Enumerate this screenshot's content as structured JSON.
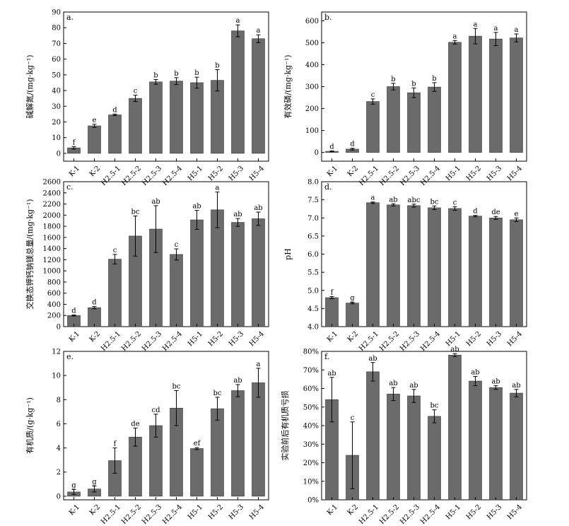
{
  "chart_data": [
    {
      "type": "bar",
      "panel_label": "a.",
      "ylabel": "碱解氮/(mg·kg⁻¹)",
      "categories": [
        "K-1",
        "K-2",
        "H2.5-1",
        "H2.5-2",
        "H2.5-3",
        "H2.5-4",
        "H5-1",
        "H5-2",
        "H5-3",
        "H5-4"
      ],
      "values": [
        3.5,
        17.5,
        24.5,
        35,
        45.5,
        46,
        45,
        46.5,
        78,
        73
      ],
      "errors": [
        0.8,
        1,
        0.5,
        2,
        1.5,
        2.2,
        3.5,
        6.8,
        3.8,
        2.5
      ],
      "letters": [
        "f",
        "e",
        "d",
        "c",
        "b",
        "b",
        "b",
        "b",
        "a",
        "a"
      ],
      "ylim": [
        -5,
        90
      ],
      "yticks": [
        0,
        10,
        20,
        30,
        40,
        50,
        60,
        70,
        80,
        90
      ],
      "ytick_labels": [
        "0",
        "10",
        "20",
        "30",
        "40",
        "50",
        "60",
        "70",
        "80",
        "90"
      ]
    },
    {
      "type": "bar",
      "panel_label": "b.",
      "ylabel": "有效磷/(mg·kg⁻¹)",
      "categories": [
        "K-1",
        "K-2",
        "H2.5-1",
        "H2.5-2",
        "H2.5-3",
        "H2.5-4",
        "H5-1",
        "H5-2",
        "H5-3",
        "H5-4"
      ],
      "values": [
        5,
        15,
        232,
        300,
        272,
        298,
        502,
        530,
        517,
        522
      ],
      "errors": [
        2,
        4,
        12,
        15,
        22,
        20,
        8,
        35,
        30,
        18
      ],
      "letters": [
        "d",
        "d",
        "c",
        "b",
        "b",
        "b",
        "a",
        "a",
        "a",
        "a"
      ],
      "ylim": [
        -40,
        640
      ],
      "yticks": [
        0,
        100,
        200,
        300,
        400,
        500,
        600
      ],
      "ytick_labels": [
        "0",
        "100",
        "200",
        "300",
        "400",
        "500",
        "600"
      ]
    },
    {
      "type": "bar",
      "panel_label": "c.",
      "ylabel": "交换态钾钙钠镁总量/(mg·kg⁻¹)",
      "categories": [
        "K-1",
        "K-2",
        "H2.5-1",
        "H2.5-2",
        "H2.5-3",
        "H2.5-4",
        "H5-1",
        "H5-2",
        "H5-3",
        "H5-4"
      ],
      "values": [
        200,
        340,
        1210,
        1625,
        1750,
        1295,
        1915,
        2095,
        1870,
        1935
      ],
      "errors": [
        10,
        20,
        85,
        360,
        420,
        100,
        170,
        320,
        70,
        120
      ],
      "letters": [
        "d",
        "d",
        "c",
        "bc",
        "ab",
        "c",
        "ab",
        "a",
        "ab",
        "ab"
      ],
      "ylim": [
        0,
        2600
      ],
      "yticks": [
        0,
        200,
        400,
        600,
        800,
        1000,
        1200,
        1400,
        1600,
        1800,
        2000,
        2200,
        2400,
        2600
      ],
      "ytick_labels": [
        "0",
        "200",
        "400",
        "600",
        "800",
        "1000",
        "1200",
        "1400",
        "1600",
        "1800",
        "2000",
        "2200",
        "2400",
        "2600"
      ]
    },
    {
      "type": "bar",
      "panel_label": "d.",
      "ylabel": "pH",
      "categories": [
        "K-1",
        "K-2",
        "H2.5-1",
        "H2.5-2",
        "H2.5-3",
        "H2.5-4",
        "H5-1",
        "H5-2",
        "H5-3",
        "H5-4"
      ],
      "values": [
        4.8,
        4.65,
        7.42,
        7.36,
        7.34,
        7.28,
        7.26,
        7.05,
        7.0,
        6.95
      ],
      "errors": [
        0.03,
        0.02,
        0.02,
        0.03,
        0.04,
        0.05,
        0.05,
        0.02,
        0.04,
        0.05
      ],
      "letters": [
        "f",
        "g",
        "a",
        "ab",
        "abc",
        "bc",
        "c",
        "d",
        "de",
        "e"
      ],
      "ylim": [
        4.0,
        8.0
      ],
      "yticks": [
        4.0,
        4.5,
        5.0,
        5.5,
        6.0,
        6.5,
        7.0,
        7.5,
        8.0
      ],
      "ytick_labels": [
        "4.0",
        "4.5",
        "5.0",
        "5.5",
        "6.0",
        "6.5",
        "7.0",
        "7.5",
        "8.0"
      ]
    },
    {
      "type": "bar",
      "panel_label": "e.",
      "ylabel": "有机质/(g·kg⁻¹)",
      "categories": [
        "K-1",
        "K-2",
        "H2.5-1",
        "H2.5-2",
        "H2.5-3",
        "H2.5-4",
        "H5-1",
        "H5-2",
        "H5-3",
        "H5-4"
      ],
      "values": [
        0.35,
        0.6,
        2.95,
        4.9,
        5.85,
        7.3,
        3.95,
        7.25,
        8.75,
        9.4
      ],
      "errors": [
        0.2,
        0.25,
        1.05,
        0.75,
        0.95,
        1.45,
        0.08,
        0.95,
        0.5,
        1.2
      ],
      "letters": [
        "g",
        "g",
        "f",
        "de",
        "cd",
        "bc",
        "ef",
        "bc",
        "ab",
        "a"
      ],
      "ylim": [
        -0.3,
        12
      ],
      "yticks": [
        0,
        2,
        4,
        6,
        8,
        10,
        12
      ],
      "ytick_labels": [
        "0",
        "2",
        "4",
        "6",
        "8",
        "10",
        "12"
      ]
    },
    {
      "type": "bar",
      "panel_label": "f.",
      "ylabel": "实验前后有机质亏损",
      "categories": [
        "K-1",
        "K-2",
        "H2.5-1",
        "H2.5-2",
        "H2.5-3",
        "H2.5-4",
        "H5-1",
        "H5-2",
        "H5-3",
        "H5-4"
      ],
      "values": [
        54,
        24,
        69,
        57,
        56,
        45,
        78,
        64,
        60.5,
        57.5
      ],
      "errors": [
        12,
        18,
        5,
        3.5,
        3.5,
        3.5,
        0.8,
        2.5,
        1,
        2
      ],
      "letters": [
        "ab",
        "c",
        "ab",
        "ab",
        "ab",
        "bc",
        "ab",
        "ab",
        "ab",
        "ab"
      ],
      "ylim": [
        0,
        80
      ],
      "yticks": [
        0,
        10,
        20,
        30,
        40,
        50,
        60,
        70,
        80
      ],
      "ytick_labels": [
        "0%",
        "10%",
        "20%",
        "30%",
        "40%",
        "50%",
        "60%",
        "70%",
        "80%"
      ]
    }
  ],
  "colors": {
    "bar": "#6b6b6b",
    "axis": "#000000"
  }
}
